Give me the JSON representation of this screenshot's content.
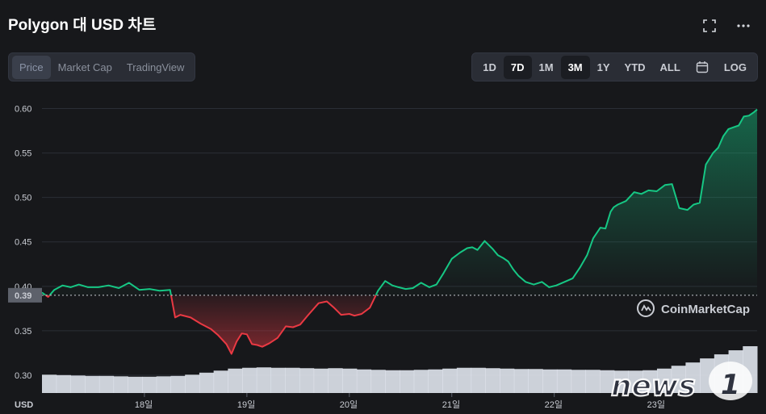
{
  "header": {
    "title": "Polygon 대 USD 차트"
  },
  "tabs": [
    {
      "label": "Price",
      "active": true
    },
    {
      "label": "Market Cap",
      "active": false
    },
    {
      "label": "TradingView",
      "active": false
    }
  ],
  "ranges": [
    {
      "label": "1D",
      "active": false
    },
    {
      "label": "7D",
      "active": true
    },
    {
      "label": "1M",
      "active": false
    },
    {
      "label": "3M",
      "active": true
    },
    {
      "label": "1Y",
      "active": false
    },
    {
      "label": "YTD",
      "active": false
    },
    {
      "label": "ALL",
      "active": false
    }
  ],
  "log_label": "LOG",
  "icons": {
    "fullscreen": "fullscreen-icon",
    "more": "more-icon",
    "calendar": "calendar-icon"
  },
  "colors": {
    "up": "#16c784",
    "down": "#ea3943",
    "volume": "#e6eaf4",
    "bg": "#17181b"
  },
  "watermark": "CoinMarketCap",
  "press_watermark": {
    "main": "news",
    "num": "1"
  },
  "chart_data": {
    "type": "line",
    "ylabel": "USD",
    "yticks": [
      "0.60",
      "0.55",
      "0.50",
      "0.45",
      "0.40",
      "0.35",
      "0.30"
    ],
    "ylim": [
      0.28,
      0.615
    ],
    "xticks": [
      "18일",
      "19일",
      "20일",
      "21일",
      "22일",
      "23일"
    ],
    "xlim": [
      17.0,
      23.98
    ],
    "baseline": 0.39,
    "baseline_label": "0.39",
    "grid": true,
    "series": [
      {
        "x": [
          17.0,
          17.06,
          17.12,
          17.2,
          17.28,
          17.36,
          17.45,
          17.55,
          17.65,
          17.75,
          17.85,
          17.95,
          18.05,
          18.15,
          18.25,
          18.3,
          18.35,
          18.45,
          18.55,
          18.65,
          18.72,
          18.8,
          18.85,
          18.9,
          18.95,
          19.0,
          19.05,
          19.1,
          19.15,
          19.22,
          19.3,
          19.38,
          19.45,
          19.52,
          19.6,
          19.7,
          19.78,
          19.85,
          19.92,
          20.0,
          20.05,
          20.12,
          20.2,
          20.28,
          20.35,
          20.42,
          20.48,
          20.55,
          20.62,
          20.7,
          20.78,
          20.85,
          20.92,
          21.0,
          21.08,
          21.15,
          21.2,
          21.25,
          21.32,
          21.4,
          21.45,
          21.5,
          21.55,
          21.6,
          21.65,
          21.72,
          21.8,
          21.88,
          21.95,
          22.02,
          22.1,
          22.18,
          22.25,
          22.32,
          22.38,
          22.45,
          22.5,
          22.55,
          22.58,
          22.62,
          22.7,
          22.78,
          22.85,
          22.92,
          23.0,
          23.08,
          23.15,
          23.22,
          23.3,
          23.36,
          23.42,
          23.48,
          23.55,
          23.6,
          23.65,
          23.7,
          23.75,
          23.8,
          23.85,
          23.9,
          23.95,
          23.98
        ],
        "y": [
          0.393,
          0.388,
          0.396,
          0.401,
          0.399,
          0.402,
          0.399,
          0.399,
          0.401,
          0.398,
          0.404,
          0.396,
          0.397,
          0.395,
          0.396,
          0.365,
          0.368,
          0.365,
          0.358,
          0.352,
          0.345,
          0.335,
          0.324,
          0.338,
          0.347,
          0.346,
          0.335,
          0.334,
          0.332,
          0.336,
          0.342,
          0.355,
          0.354,
          0.357,
          0.368,
          0.381,
          0.383,
          0.376,
          0.368,
          0.369,
          0.367,
          0.369,
          0.376,
          0.395,
          0.406,
          0.401,
          0.399,
          0.397,
          0.398,
          0.404,
          0.399,
          0.402,
          0.415,
          0.431,
          0.438,
          0.443,
          0.444,
          0.441,
          0.451,
          0.442,
          0.435,
          0.432,
          0.428,
          0.419,
          0.412,
          0.405,
          0.402,
          0.405,
          0.399,
          0.401,
          0.405,
          0.409,
          0.421,
          0.435,
          0.454,
          0.466,
          0.465,
          0.484,
          0.489,
          0.492,
          0.496,
          0.506,
          0.504,
          0.508,
          0.507,
          0.514,
          0.515,
          0.488,
          0.486,
          0.492,
          0.494,
          0.537,
          0.55,
          0.556,
          0.569,
          0.577,
          0.579,
          0.581,
          0.591,
          0.592,
          0.596,
          0.599
        ]
      }
    ],
    "volume": [
      0.45,
      0.44,
      0.43,
      0.42,
      0.42,
      0.41,
      0.4,
      0.4,
      0.41,
      0.42,
      0.45,
      0.5,
      0.55,
      0.6,
      0.62,
      0.63,
      0.62,
      0.62,
      0.61,
      0.6,
      0.61,
      0.6,
      0.58,
      0.57,
      0.56,
      0.56,
      0.57,
      0.58,
      0.6,
      0.62,
      0.62,
      0.61,
      0.6,
      0.59,
      0.59,
      0.58,
      0.58,
      0.57,
      0.57,
      0.56,
      0.55,
      0.55,
      0.56,
      0.6,
      0.67,
      0.75,
      0.85,
      0.95,
      1.05,
      1.15
    ]
  }
}
